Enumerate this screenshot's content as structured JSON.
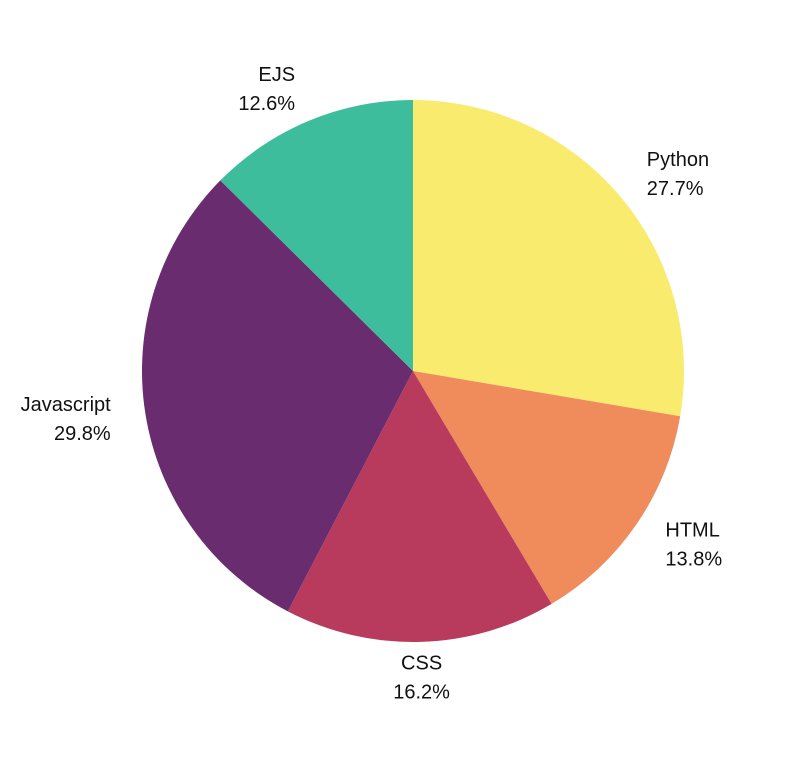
{
  "chart_data": {
    "type": "pie",
    "title": "",
    "start": "top",
    "direction": "clockwise",
    "slices": [
      {
        "label": "Python",
        "value": 27.7,
        "value_label": "27.7%",
        "color": "#f9eb6d"
      },
      {
        "label": "HTML",
        "value": 13.8,
        "value_label": "13.8%",
        "color": "#f08b5c"
      },
      {
        "label": "CSS",
        "value": 16.2,
        "value_label": "16.2%",
        "color": "#b83b5e"
      },
      {
        "label": "Javascript",
        "value": 29.8,
        "value_label": "29.8%",
        "color": "#682c6f"
      },
      {
        "label": "EJS",
        "value": 12.6,
        "value_label": "12.6%",
        "color": "#3ebd9c"
      }
    ]
  }
}
